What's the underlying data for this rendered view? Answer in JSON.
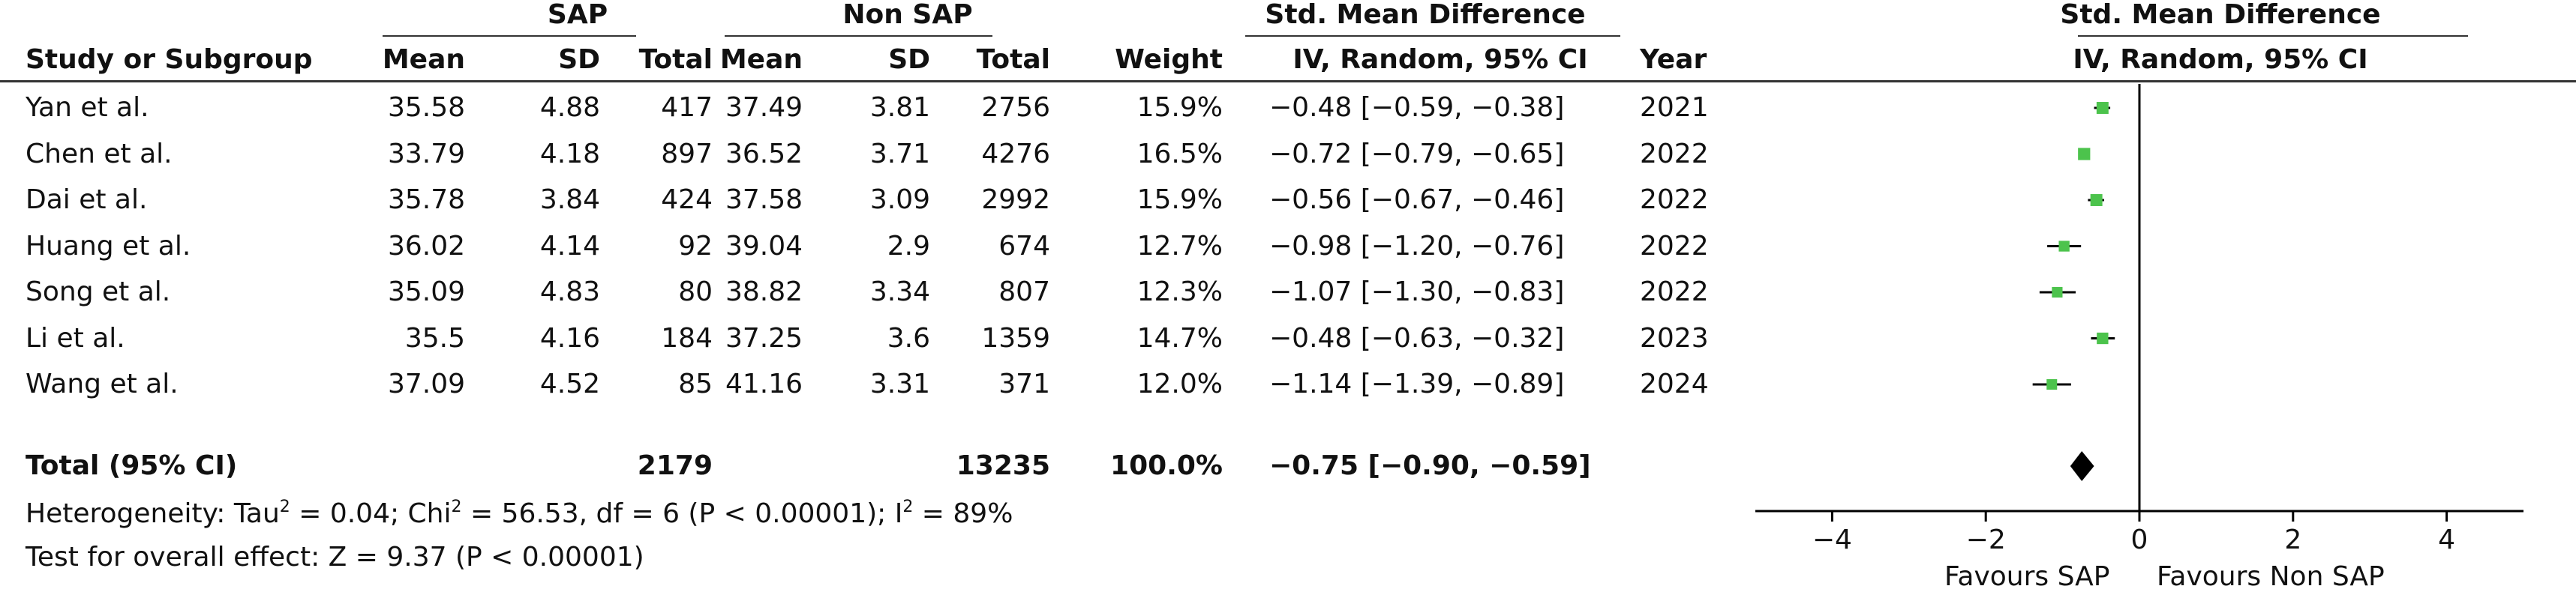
{
  "headers": {
    "sap": "SAP",
    "non_sap": "Non SAP",
    "smd": "Std. Mean Difference",
    "study": "Study or Subgroup",
    "mean": "Mean",
    "sd": "SD",
    "total": "Total",
    "weight": "Weight",
    "method": "IV, Random, 95% CI",
    "year": "Year",
    "plot_title": "Std. Mean Difference",
    "plot_method": "IV, Random, 95% CI"
  },
  "studies": [
    {
      "name": "Yan et al.",
      "sap_mean": "35.58",
      "sap_sd": "4.88",
      "sap_total": "417",
      "non_mean": "37.49",
      "non_sd": "3.81",
      "non_total": "2756",
      "weight": "15.9%",
      "ci": "−0.48 [−0.59, −0.38]",
      "year": "2021"
    },
    {
      "name": "Chen et al.",
      "sap_mean": "33.79",
      "sap_sd": "4.18",
      "sap_total": "897",
      "non_mean": "36.52",
      "non_sd": "3.71",
      "non_total": "4276",
      "weight": "16.5%",
      "ci": "−0.72 [−0.79, −0.65]",
      "year": "2022"
    },
    {
      "name": "Dai et al.",
      "sap_mean": "35.78",
      "sap_sd": "3.84",
      "sap_total": "424",
      "non_mean": "37.58",
      "non_sd": "3.09",
      "non_total": "2992",
      "weight": "15.9%",
      "ci": "−0.56 [−0.67, −0.46]",
      "year": "2022"
    },
    {
      "name": "Huang et al.",
      "sap_mean": "36.02",
      "sap_sd": "4.14",
      "sap_total": "92",
      "non_mean": "39.04",
      "non_sd": "2.9",
      "non_total": "674",
      "weight": "12.7%",
      "ci": "−0.98 [−1.20, −0.76]",
      "year": "2022"
    },
    {
      "name": "Song et al.",
      "sap_mean": "35.09",
      "sap_sd": "4.83",
      "sap_total": "80",
      "non_mean": "38.82",
      "non_sd": "3.34",
      "non_total": "807",
      "weight": "12.3%",
      "ci": "−1.07 [−1.30, −0.83]",
      "year": "2022"
    },
    {
      "name": "Li et al.",
      "sap_mean": "35.5",
      "sap_sd": "4.16",
      "sap_total": "184",
      "non_mean": "37.25",
      "non_sd": "3.6",
      "non_total": "1359",
      "weight": "14.7%",
      "ci": "−0.48 [−0.63, −0.32]",
      "year": "2023"
    },
    {
      "name": "Wang et al.",
      "sap_mean": "37.09",
      "sap_sd": "4.52",
      "sap_total": "85",
      "non_mean": "41.16",
      "non_sd": "3.31",
      "non_total": "371",
      "weight": "12.0%",
      "ci": "−1.14 [−1.39, −0.89]",
      "year": "2024"
    }
  ],
  "total": {
    "label": "Total (95% CI)",
    "sap_total": "2179",
    "non_total": "13235",
    "weight": "100.0%",
    "ci": "−0.75 [−0.90, −0.59]"
  },
  "footer": {
    "heterogeneity_pre": "Heterogeneity: Tau",
    "heterogeneity_mid": " = 0.04; Chi",
    "heterogeneity_mid2": " = 56.53, df = 6 (P < 0.00001); I",
    "heterogeneity_post": " = 89%",
    "sup2": "2",
    "overall": "Test for overall effect: Z = 9.37 (P < 0.00001)"
  },
  "axis": {
    "favours_left": "Favours SAP",
    "favours_right": "Favours Non SAP"
  },
  "colors": {
    "marker": "#4cc34c",
    "diamond": "#000000",
    "line": "#000000"
  },
  "chart_data": {
    "type": "scatter",
    "xlim": [
      -5,
      5
    ],
    "ticks": [
      -4,
      -2,
      0,
      2,
      4
    ],
    "tick_labels": [
      "−4",
      "−2",
      "0",
      "2",
      "4"
    ],
    "studies": [
      {
        "est": -0.48,
        "lo": -0.59,
        "hi": -0.38,
        "w": 15.9
      },
      {
        "est": -0.72,
        "lo": -0.79,
        "hi": -0.65,
        "w": 16.5
      },
      {
        "est": -0.56,
        "lo": -0.67,
        "hi": -0.46,
        "w": 15.9
      },
      {
        "est": -0.98,
        "lo": -1.2,
        "hi": -0.76,
        "w": 12.7
      },
      {
        "est": -1.07,
        "lo": -1.3,
        "hi": -0.83,
        "w": 12.3
      },
      {
        "est": -0.48,
        "lo": -0.63,
        "hi": -0.32,
        "w": 14.7
      },
      {
        "est": -1.14,
        "lo": -1.39,
        "hi": -0.89,
        "w": 12.0
      }
    ],
    "total": {
      "est": -0.75,
      "lo": -0.9,
      "hi": -0.59
    }
  }
}
